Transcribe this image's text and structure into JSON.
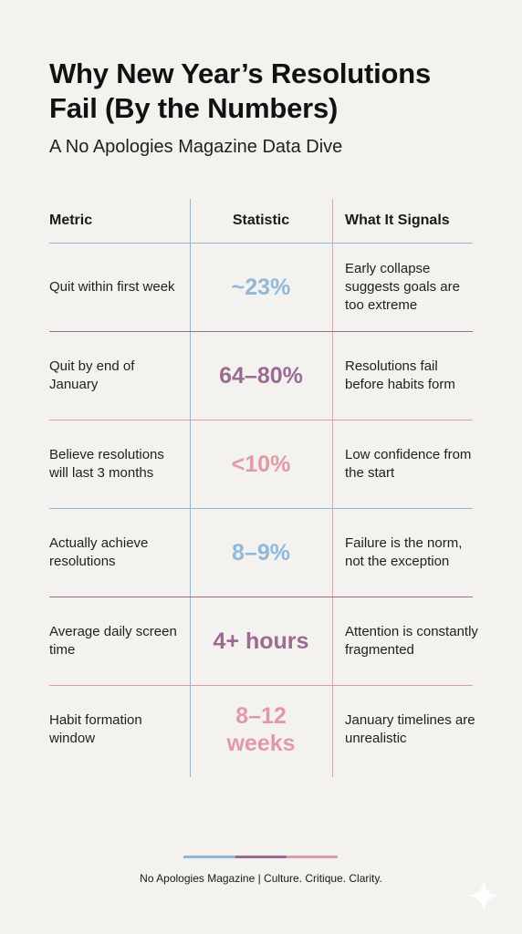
{
  "title": "Why New Year’s Resolutions Fail (By the Numbers)",
  "subtitle": "A No Apologies Magazine Data Dive",
  "table": {
    "headers": {
      "metric": "Metric",
      "statistic": "Statistic",
      "signal": "What It Signals"
    },
    "rows": [
      {
        "metric": "Quit within first week",
        "statistic": "~23%",
        "signal": "Early collapse suggests goals are too extreme",
        "color": "#8fb9da"
      },
      {
        "metric": "Quit by end of January",
        "statistic": "64–80%",
        "signal": "Resolutions fail before habits form",
        "color": "#9a6b93"
      },
      {
        "metric": "Believe resolutions will last 3 months",
        "statistic": "<10%",
        "signal": "Low confidence from the start",
        "color": "#e09aa6"
      },
      {
        "metric": "Actually achieve resolutions",
        "statistic": "8–9%",
        "signal": "Failure is the norm, not the exception",
        "color": "#8fb9da"
      },
      {
        "metric": "Average daily screen time",
        "statistic": "4+ hours",
        "signal": "Attention is constantly fragmented",
        "color": "#9a6b93"
      },
      {
        "metric": "Habit formation window",
        "statistic": "8–12 weeks",
        "signal": "January timelines are unrealistic",
        "color": "#e09aa6"
      }
    ]
  },
  "footer": {
    "text": "No Apologies Magazine | Culture. Critique. Clarity.",
    "bar_colors": [
      "#8fb6d6",
      "#9a6b93",
      "#e09aa6"
    ]
  },
  "colors": {
    "background": "#f4f2ee",
    "blue": "#8fb9da",
    "plum": "#9a6b93",
    "pink": "#e09aa6"
  },
  "icons": {
    "corner": "sparkle-icon"
  }
}
